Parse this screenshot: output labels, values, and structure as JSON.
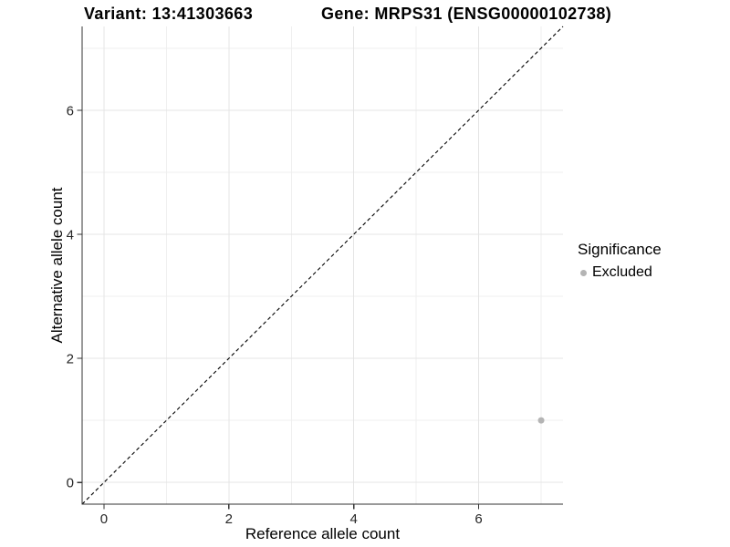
{
  "chart_data": {
    "type": "scatter",
    "title_left": "Variant: 13:41303663",
    "title_right": "Gene: MRPS31 (ENSG00000102738)",
    "xlabel": "Reference allele count",
    "ylabel": "Alternative allele count",
    "xlim": [
      -0.35,
      7.35
    ],
    "ylim": [
      -0.35,
      7.35
    ],
    "x_breaks": [
      0,
      2,
      4,
      6
    ],
    "y_breaks": [
      0,
      2,
      4,
      6
    ],
    "x_minor_breaks": [
      1,
      3,
      5,
      7
    ],
    "y_minor_breaks": [
      1,
      3,
      5,
      7
    ],
    "grid": "major+minor",
    "reference_line": {
      "type": "identity y=x",
      "style": "dashed",
      "color": "#000000"
    },
    "series": [
      {
        "name": "Excluded",
        "color": "#b4b4b4",
        "points": [
          {
            "x": 7,
            "y": 1
          }
        ]
      }
    ],
    "legend": {
      "title": "Significance",
      "position": "right",
      "items": [
        {
          "label": "Excluded",
          "color": "#b4b4b4"
        }
      ]
    },
    "style": {
      "background": "#ffffff",
      "grid_major_color": "#e4e4e4",
      "grid_minor_color": "#efefef",
      "axis_color": "#333333",
      "tick_color": "#333333",
      "point_radius": 3.5
    }
  }
}
